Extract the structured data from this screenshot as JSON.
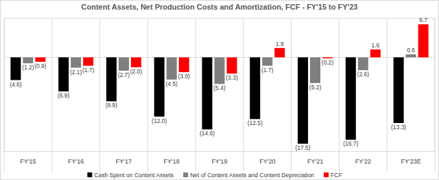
{
  "chart_data": {
    "type": "bar",
    "title": "Content Assets, Net Production Costs and Amortization, FCF - FY'15 to FY'23",
    "categories": [
      "FY'15",
      "FY'16",
      "FY'17",
      "FY'18",
      "FY'19",
      "FY'20",
      "FY'21",
      "FY'22",
      "FY'23E"
    ],
    "series": [
      {
        "name": "Cash Spent on Content Assets",
        "color": "#000000",
        "values": [
          -4.6,
          -6.9,
          -8.9,
          -12.0,
          -14.6,
          -12.5,
          -17.5,
          -16.7,
          -13.3
        ],
        "value_labels": [
          "(4.6)",
          "(6.9)",
          "(8.9)",
          "(12.0)",
          "(14.6)",
          "(12.5)",
          "(17.5)",
          "(16.7)",
          "(13.3)"
        ]
      },
      {
        "name": "Net of Content Assets and Content Depreciation",
        "color": "#7f7f7f",
        "values": [
          -1.2,
          -2.1,
          -2.7,
          -4.5,
          -5.4,
          -1.7,
          -5.2,
          -2.6,
          0.6
        ],
        "value_labels": [
          "(1.2)",
          "(2.1)",
          "(2.7)",
          "(4.5)",
          "(5.4)",
          "(1.7)",
          "(5.2)",
          "(2.6)",
          "0.6"
        ]
      },
      {
        "name": "FCF",
        "color": "#ff0000",
        "values": [
          -0.9,
          -1.7,
          -2.0,
          -3.0,
          -3.3,
          1.9,
          -0.2,
          1.6,
          6.7
        ],
        "value_labels": [
          "(0.9)",
          "(1.7)",
          "(2.0)",
          "(3.0)",
          "(3.3)",
          "1.9",
          "(0.2)",
          "1.6",
          "6.7"
        ]
      }
    ],
    "ylim": [
      -19,
      8
    ],
    "yticks": [
      0
    ],
    "data_labels": true,
    "tick_labels": "x",
    "grid": false,
    "legend": "bottom"
  }
}
